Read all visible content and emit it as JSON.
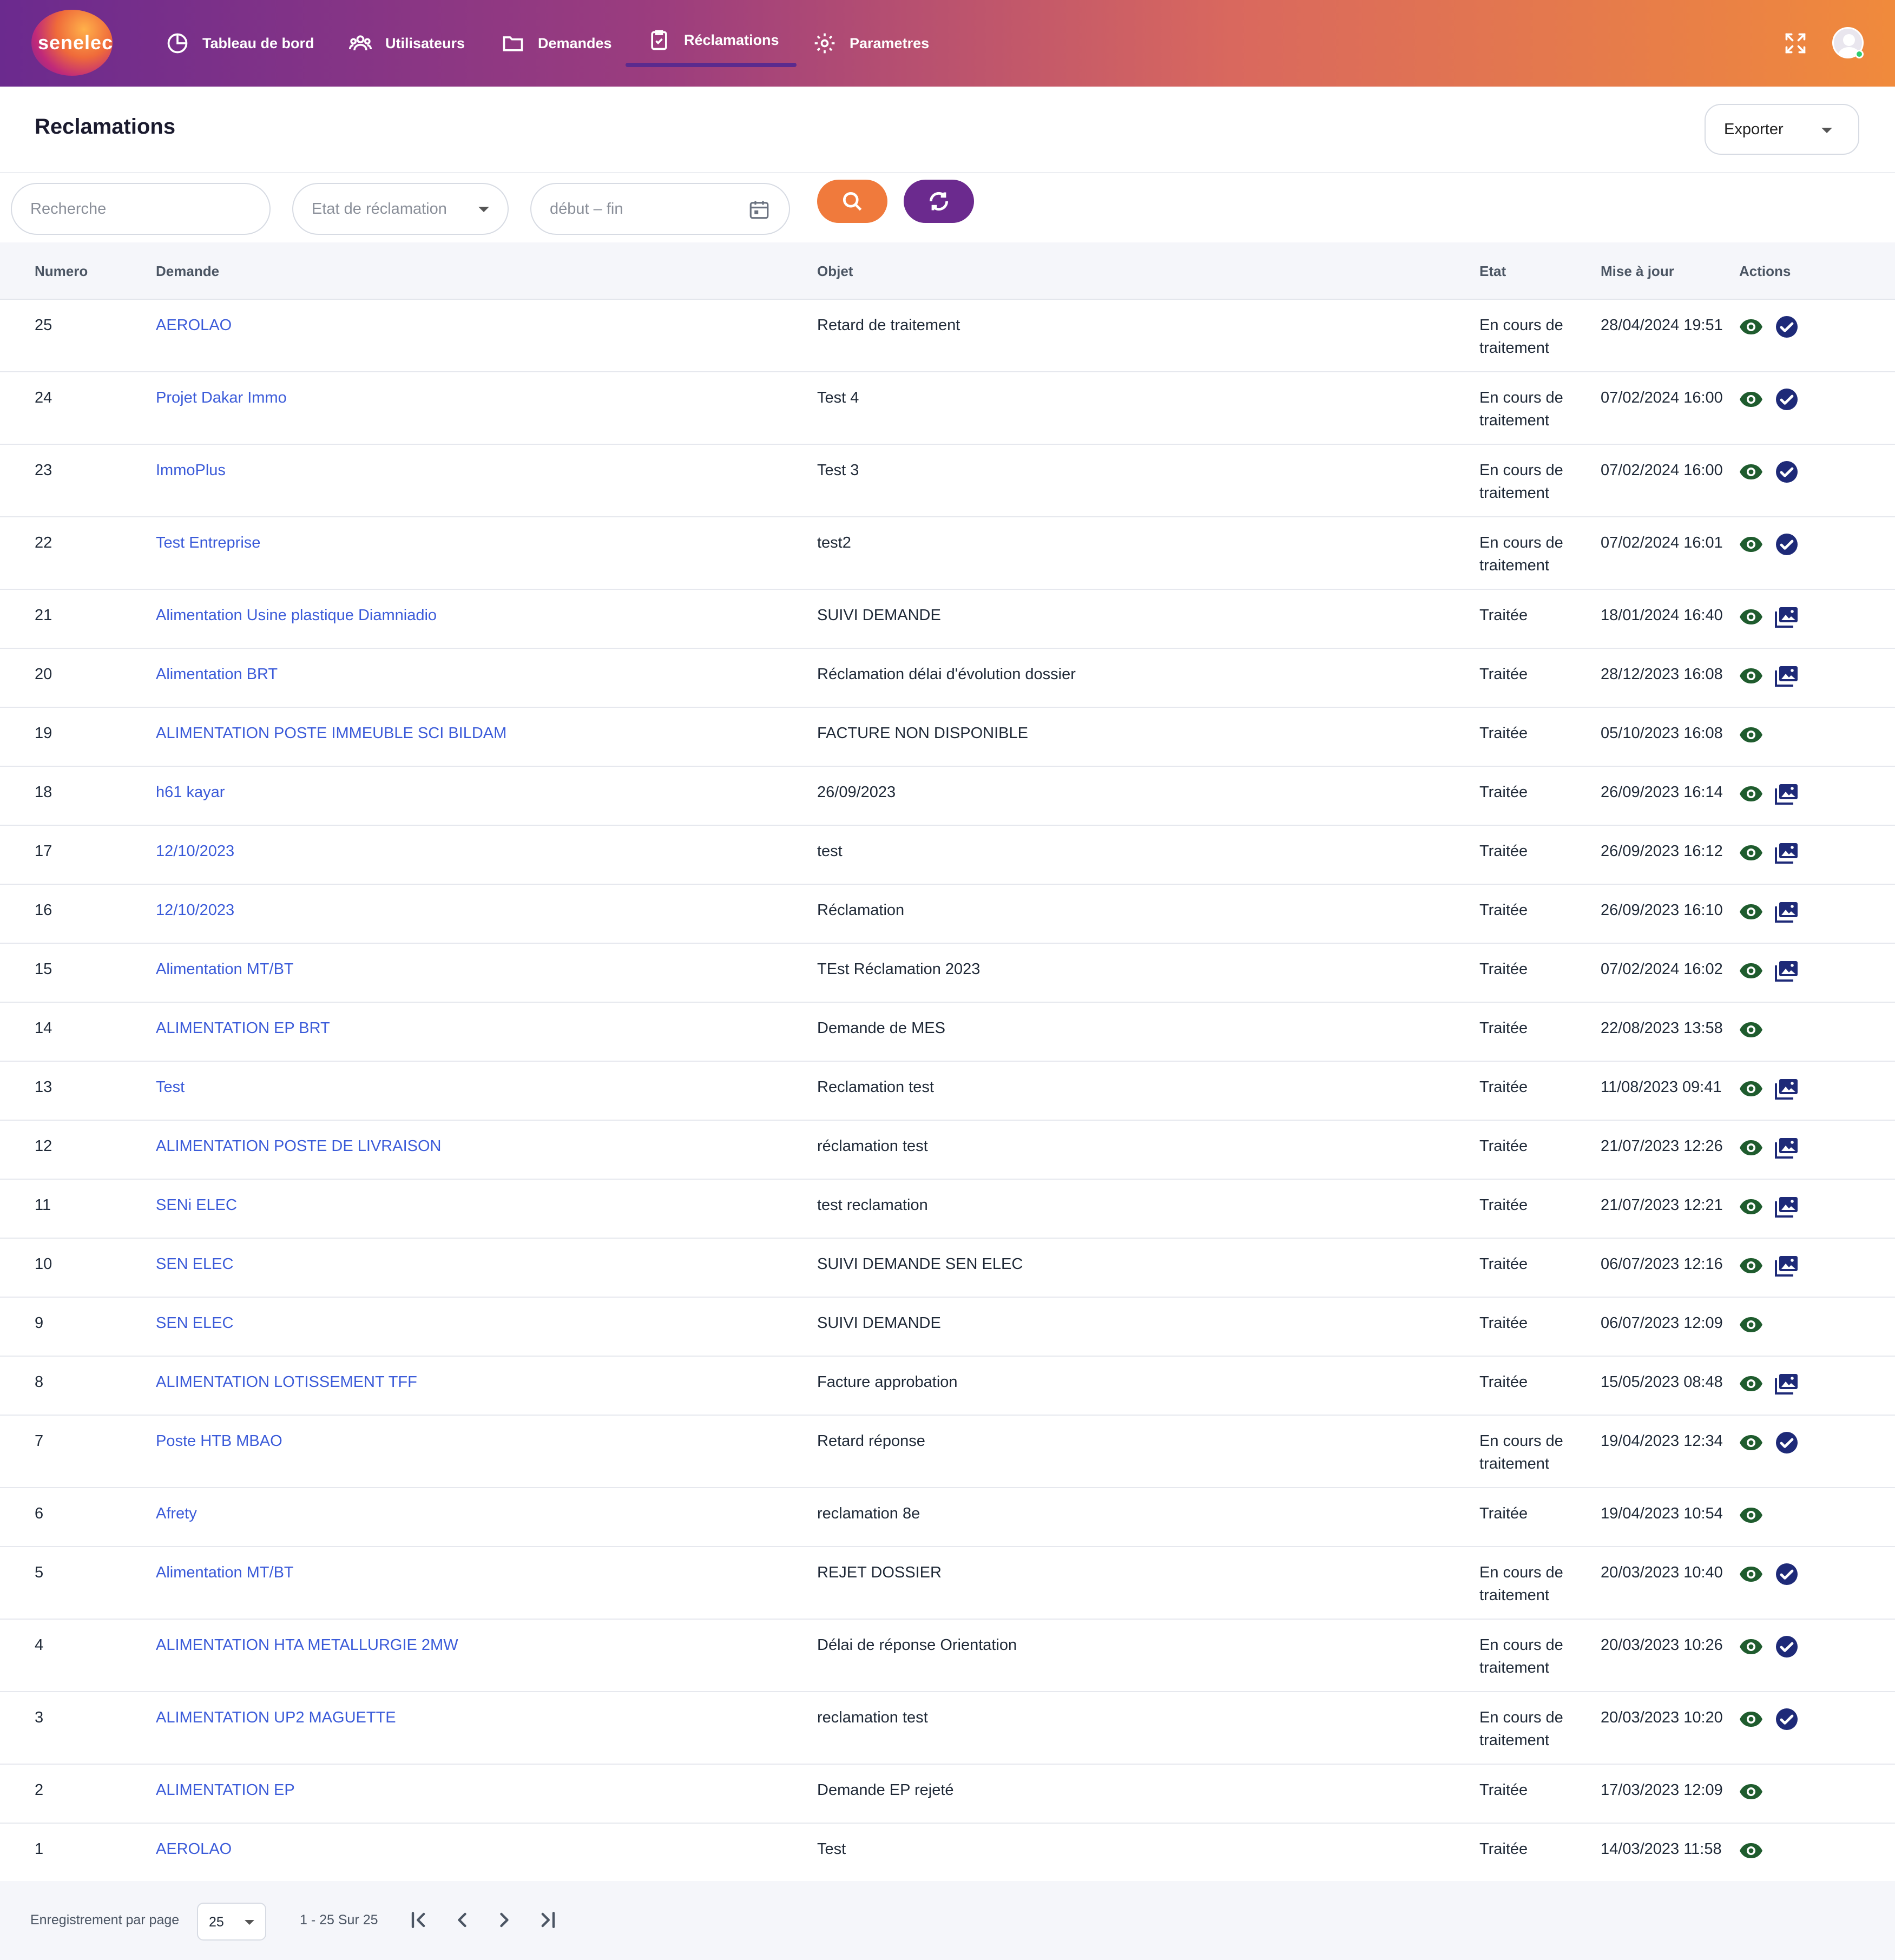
{
  "app": {
    "logo_text": "senelec"
  },
  "nav": {
    "items": [
      {
        "label": "Tableau de bord",
        "icon": "chart-pie-icon"
      },
      {
        "label": "Utilisateurs",
        "icon": "users-icon"
      },
      {
        "label": "Demandes",
        "icon": "folder-icon"
      },
      {
        "label": "Réclamations",
        "icon": "clipboard-check-icon",
        "active": true
      },
      {
        "label": "Parametres",
        "icon": "gear-icon"
      }
    ],
    "right_icons": [
      "fullscreen-icon",
      "avatar"
    ]
  },
  "header": {
    "title": "Reclamations",
    "export_label": "Exporter"
  },
  "filters": {
    "search_placeholder": "Recherche",
    "status_placeholder": "Etat de réclamation",
    "date_placeholder": "début – fin"
  },
  "colors": {
    "accent_orange": "#f07a3c",
    "accent_purple": "#6b2a8e",
    "link_blue": "#3b5bd9",
    "eye_green": "#1f5c2e",
    "check_navy": "#1e2a78"
  },
  "table": {
    "columns": [
      "Numero",
      "Demande",
      "Objet",
      "Etat",
      "Mise à jour",
      "Actions"
    ],
    "rows": [
      {
        "numero": "25",
        "demande": "AEROLAO",
        "objet": "Retard de traitement",
        "etat": "En cours de traitement",
        "maj": "28/04/2024 19:51",
        "action2": "check"
      },
      {
        "numero": "24",
        "demande": "Projet Dakar Immo",
        "objet": "Test 4",
        "etat": "En cours de traitement",
        "maj": "07/02/2024 16:00",
        "action2": "check"
      },
      {
        "numero": "23",
        "demande": "ImmoPlus",
        "objet": "Test 3",
        "etat": "En cours de traitement",
        "maj": "07/02/2024 16:00",
        "action2": "check"
      },
      {
        "numero": "22",
        "demande": "Test Entreprise",
        "objet": "test2",
        "etat": "En cours de traitement",
        "maj": "07/02/2024 16:01",
        "action2": "check"
      },
      {
        "numero": "21",
        "demande": "Alimentation Usine plastique Diamniadio",
        "objet": "SUIVI DEMANDE",
        "etat": "Traitée",
        "maj": "18/01/2024 16:40",
        "action2": "gallery"
      },
      {
        "numero": "20",
        "demande": "Alimentation BRT",
        "objet": "Réclamation délai d'évolution dossier",
        "etat": "Traitée",
        "maj": "28/12/2023 16:08",
        "action2": "gallery"
      },
      {
        "numero": "19",
        "demande": "ALIMENTATION POSTE IMMEUBLE SCI BILDAM",
        "objet": "FACTURE NON DISPONIBLE",
        "etat": "Traitée",
        "maj": "05/10/2023 16:08",
        "action2": "none"
      },
      {
        "numero": "18",
        "demande": "h61 kayar",
        "objet": "26/09/2023",
        "etat": "Traitée",
        "maj": "26/09/2023 16:14",
        "action2": "gallery"
      },
      {
        "numero": "17",
        "demande": "12/10/2023",
        "objet": "test",
        "etat": "Traitée",
        "maj": "26/09/2023 16:12",
        "action2": "gallery"
      },
      {
        "numero": "16",
        "demande": "12/10/2023",
        "objet": "Réclamation",
        "etat": "Traitée",
        "maj": "26/09/2023 16:10",
        "action2": "gallery"
      },
      {
        "numero": "15",
        "demande": "Alimentation MT/BT",
        "objet": "TEst Réclamation 2023",
        "etat": "Traitée",
        "maj": "07/02/2024 16:02",
        "action2": "gallery"
      },
      {
        "numero": "14",
        "demande": "ALIMENTATION EP BRT",
        "objet": "Demande de MES",
        "etat": "Traitée",
        "maj": "22/08/2023 13:58",
        "action2": "none"
      },
      {
        "numero": "13",
        "demande": "Test",
        "objet": "Reclamation test",
        "etat": "Traitée",
        "maj": "11/08/2023 09:41",
        "action2": "gallery"
      },
      {
        "numero": "12",
        "demande": "ALIMENTATION POSTE DE LIVRAISON",
        "objet": "réclamation test",
        "etat": "Traitée",
        "maj": "21/07/2023 12:26",
        "action2": "gallery"
      },
      {
        "numero": "11",
        "demande": "SENi ELEC",
        "objet": "test reclamation",
        "etat": "Traitée",
        "maj": "21/07/2023 12:21",
        "action2": "gallery"
      },
      {
        "numero": "10",
        "demande": "SEN ELEC",
        "objet": "SUIVI DEMANDE SEN ELEC",
        "etat": "Traitée",
        "maj": "06/07/2023 12:16",
        "action2": "gallery"
      },
      {
        "numero": "9",
        "demande": "SEN ELEC",
        "objet": "SUIVI DEMANDE",
        "etat": "Traitée",
        "maj": "06/07/2023 12:09",
        "action2": "none"
      },
      {
        "numero": "8",
        "demande": "ALIMENTATION LOTISSEMENT TFF",
        "objet": "Facture approbation",
        "etat": "Traitée",
        "maj": "15/05/2023 08:48",
        "action2": "gallery"
      },
      {
        "numero": "7",
        "demande": "Poste HTB MBAO",
        "objet": "Retard réponse",
        "etat": "En cours de traitement",
        "maj": "19/04/2023 12:34",
        "action2": "check"
      },
      {
        "numero": "6",
        "demande": "Afrety",
        "objet": "reclamation 8e",
        "etat": "Traitée",
        "maj": "19/04/2023 10:54",
        "action2": "none"
      },
      {
        "numero": "5",
        "demande": "Alimentation MT/BT",
        "objet": "REJET DOSSIER",
        "etat": "En cours de traitement",
        "maj": "20/03/2023 10:40",
        "action2": "check"
      },
      {
        "numero": "4",
        "demande": "ALIMENTATION HTA METALLURGIE 2MW",
        "objet": "Délai de réponse Orientation",
        "etat": "En cours de traitement",
        "maj": "20/03/2023 10:26",
        "action2": "check"
      },
      {
        "numero": "3",
        "demande": "ALIMENTATION UP2 MAGUETTE",
        "objet": "reclamation test",
        "etat": "En cours de traitement",
        "maj": "20/03/2023 10:20",
        "action2": "check"
      },
      {
        "numero": "2",
        "demande": "ALIMENTATION EP",
        "objet": "Demande EP rejeté",
        "etat": "Traitée",
        "maj": "17/03/2023 12:09",
        "action2": "none"
      },
      {
        "numero": "1",
        "demande": "AEROLAO",
        "objet": "Test",
        "etat": "Traitée",
        "maj": "14/03/2023 11:58",
        "action2": "none"
      }
    ]
  },
  "pagination": {
    "per_page_label": "Enregistrement par page",
    "per_page_value": "25",
    "range_text": "1 - 25 Sur 25"
  }
}
